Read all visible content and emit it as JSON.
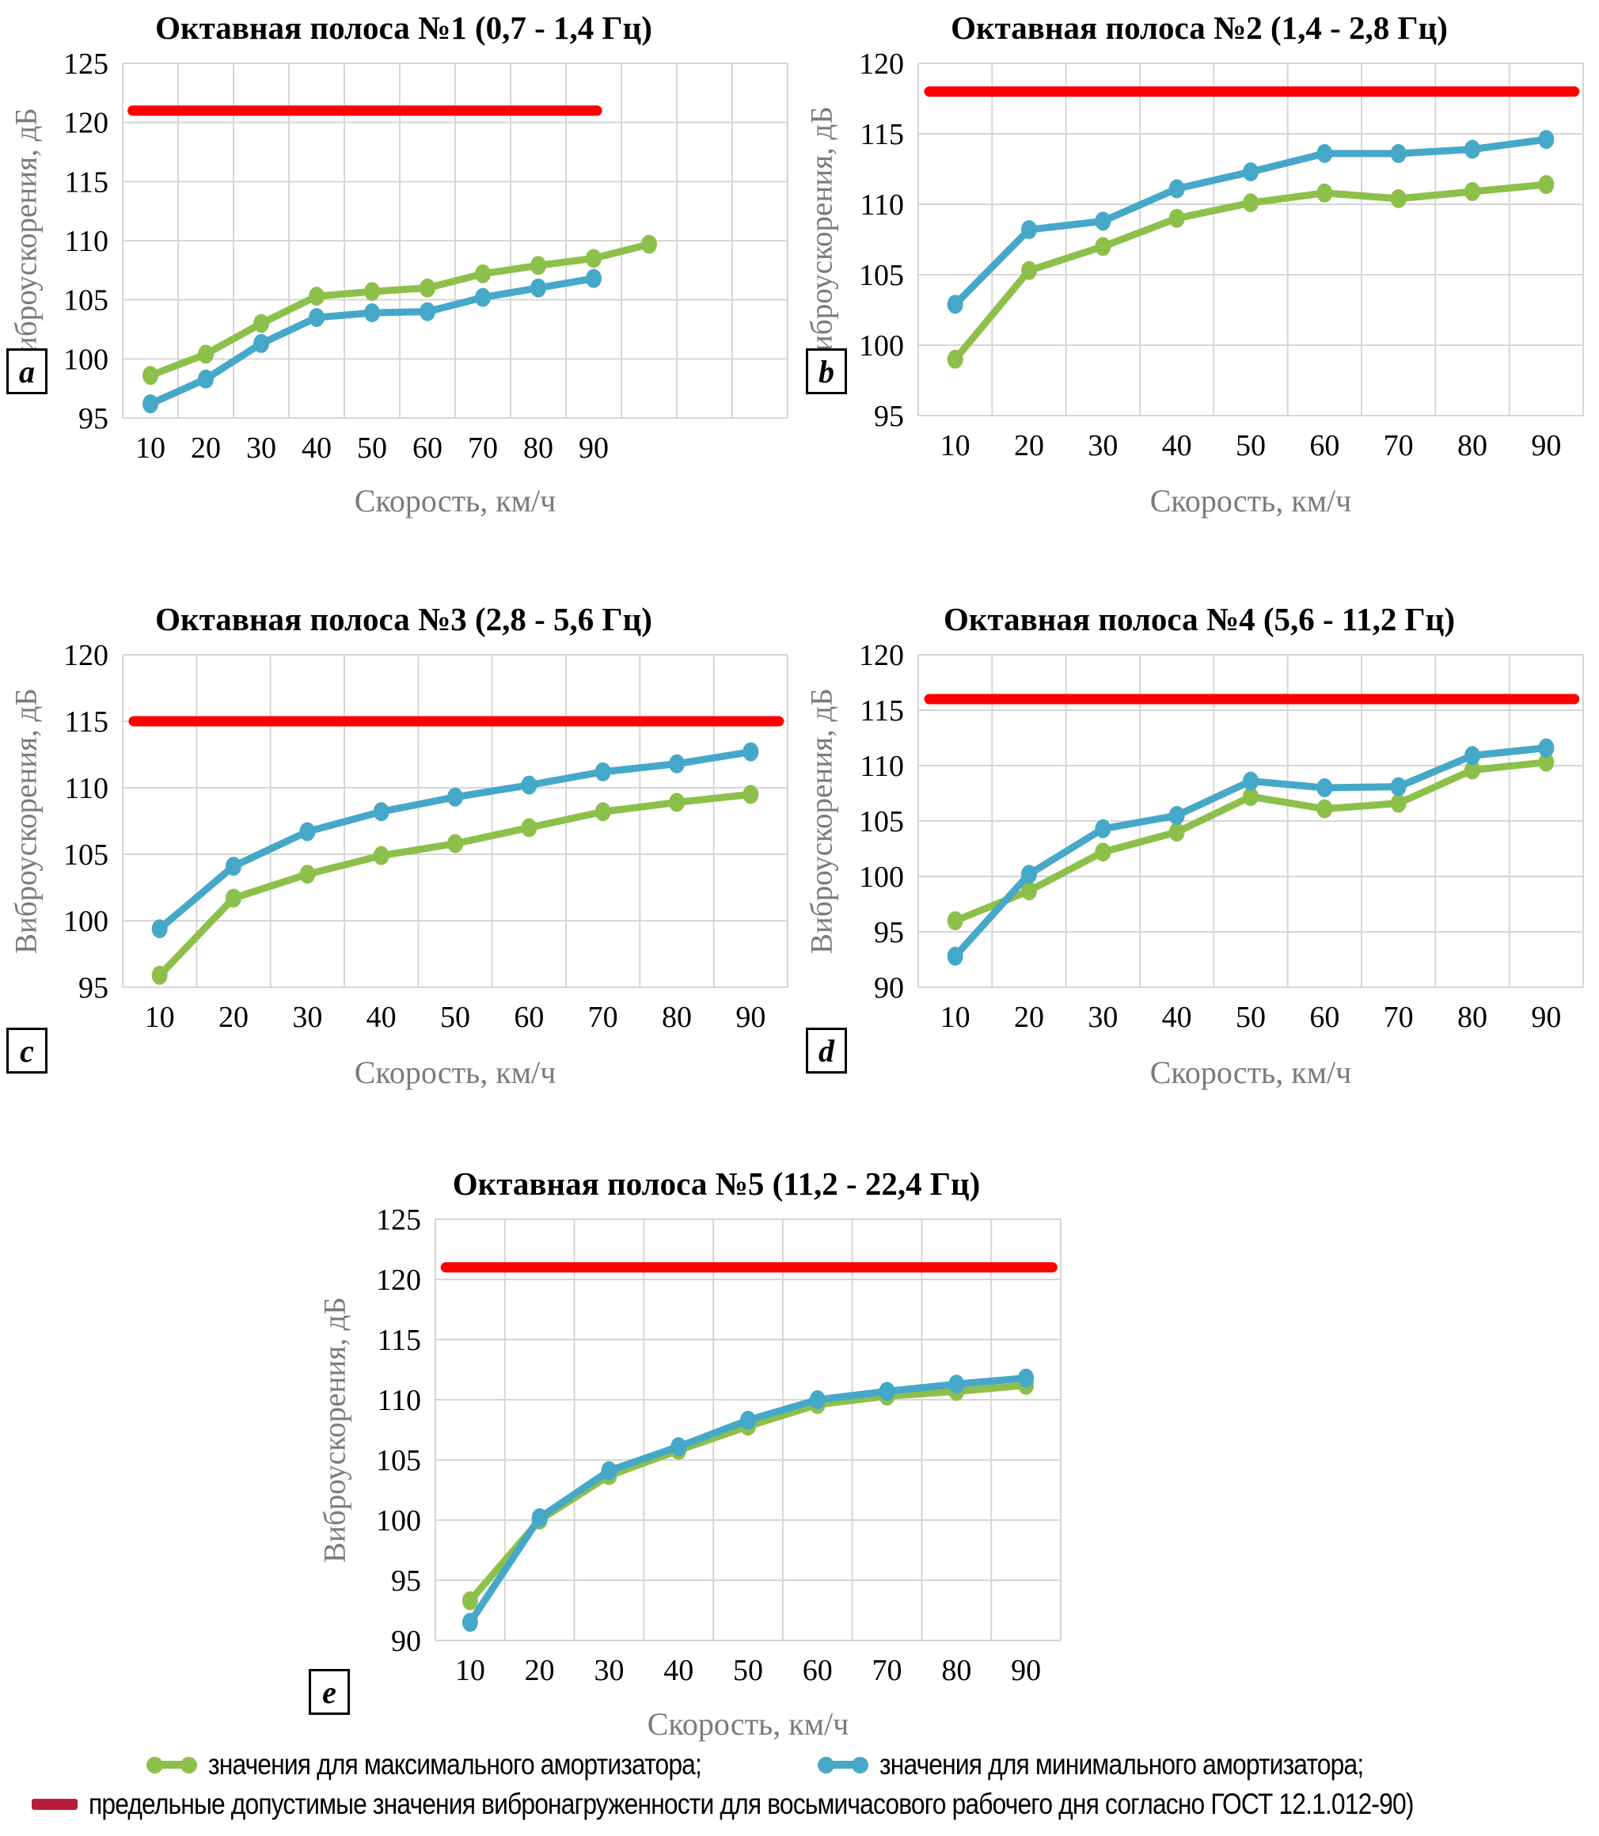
{
  "page": {
    "background": "#ffffff"
  },
  "legend": {
    "items": [
      {
        "swatch": "line-with-dots",
        "color": "#8dc04a",
        "label": "значения для максимального амортизатора;"
      },
      {
        "swatch": "line-with-dots",
        "color": "#46a8c8",
        "label": "значения для минимального амортизатора;"
      },
      {
        "swatch": "line",
        "color": "#b81e3c",
        "label": "предельные допустимые значения вибронагруженности для восьмичасового рабочего дня согласно ГОСТ 12.1.012-90)"
      }
    ]
  },
  "chart_data": {
    "type": "line",
    "xlabel": "Скорость, км/ч",
    "ylabel": "Виброускорения, дБ",
    "x_categories": [
      10,
      20,
      30,
      40,
      50,
      60,
      70,
      80,
      90
    ],
    "grid": "on",
    "series_colors": {
      "max": "#8dc04a",
      "min": "#46a8c8",
      "limit": "#ff0000"
    },
    "charts": [
      {
        "letter": "a",
        "title": "Октавная полоса №1 (0,7 - 1,4 Гц)",
        "ylim": [
          95,
          125
        ],
        "ystep": 5,
        "limit_value": 121,
        "series": [
          {
            "key": "max",
            "name": "значения для максимального амортизатора",
            "x": [
              10,
              20,
              30,
              40,
              50,
              60,
              70,
              80,
              90,
              100
            ],
            "values": [
              98.6,
              100.4,
              103.0,
              105.3,
              105.7,
              106.0,
              107.2,
              107.9,
              108.5,
              109.7
            ]
          },
          {
            "key": "min",
            "name": "значения для минимального амортизатора",
            "x": [
              10,
              20,
              30,
              40,
              50,
              60,
              70,
              80,
              90
            ],
            "values": [
              96.2,
              98.3,
              101.3,
              103.5,
              103.9,
              104.0,
              105.2,
              106.0,
              106.8
            ]
          }
        ]
      },
      {
        "letter": "b",
        "title": "Октавная полоса №2 (1,4 - 2,8 Гц)",
        "ylim": [
          95,
          120
        ],
        "ystep": 5,
        "limit_value": 118,
        "series": [
          {
            "key": "max",
            "name": "значения для максимального амортизатора",
            "x": [
              10,
              20,
              30,
              40,
              50,
              60,
              70,
              80,
              90
            ],
            "values": [
              99.0,
              105.3,
              107.0,
              109.0,
              110.1,
              110.8,
              110.4,
              110.9,
              111.4
            ]
          },
          {
            "key": "min",
            "name": "значения для минимального амортизатора",
            "x": [
              10,
              20,
              30,
              40,
              50,
              60,
              70,
              80,
              90
            ],
            "values": [
              102.9,
              108.2,
              108.8,
              111.1,
              112.3,
              113.6,
              113.6,
              113.9,
              114.6
            ]
          }
        ]
      },
      {
        "letter": "c",
        "title": "Октавная полоса №3 (2,8 - 5,6 Гц)",
        "ylim": [
          95,
          120
        ],
        "ystep": 5,
        "limit_value": 115,
        "series": [
          {
            "key": "max",
            "name": "значения для максимального амортизатора",
            "x": [
              10,
              20,
              30,
              40,
              50,
              60,
              70,
              80,
              90
            ],
            "values": [
              95.9,
              101.7,
              103.5,
              104.9,
              105.8,
              107.0,
              108.2,
              108.9,
              109.5
            ]
          },
          {
            "key": "min",
            "name": "значения для минимального амортизатора",
            "x": [
              10,
              20,
              30,
              40,
              50,
              60,
              70,
              80,
              90
            ],
            "values": [
              99.4,
              104.1,
              106.7,
              108.2,
              109.3,
              110.2,
              111.2,
              111.8,
              112.7
            ]
          }
        ]
      },
      {
        "letter": "d",
        "title": "Октавная полоса №4 (5,6 - 11,2 Гц)",
        "ylim": [
          90,
          120
        ],
        "ystep": 5,
        "limit_value": 116,
        "series": [
          {
            "key": "max",
            "name": "значения для максимального амортизатора",
            "x": [
              10,
              20,
              30,
              40,
              50,
              60,
              70,
              80,
              90
            ],
            "values": [
              96.0,
              98.7,
              102.2,
              104.0,
              107.2,
              106.1,
              106.6,
              109.6,
              110.3
            ]
          },
          {
            "key": "min",
            "name": "значения для минимального амортизатора",
            "x": [
              10,
              20,
              30,
              40,
              50,
              60,
              70,
              80,
              90
            ],
            "values": [
              92.8,
              100.2,
              104.3,
              105.5,
              108.6,
              108.0,
              108.1,
              110.9,
              111.6
            ]
          }
        ]
      },
      {
        "letter": "e",
        "title": "Октавная полоса №5 (11,2 - 22,4 Гц)",
        "ylim": [
          90,
          125
        ],
        "ystep": 5,
        "limit_value": 121,
        "series": [
          {
            "key": "max",
            "name": "значения для максимального амортизатора",
            "x": [
              10,
              20,
              30,
              40,
              50,
              60,
              70,
              80,
              90
            ],
            "values": [
              93.3,
              100.0,
              103.7,
              105.8,
              107.8,
              109.6,
              110.3,
              110.7,
              111.2
            ]
          },
          {
            "key": "min",
            "name": "значения для минимального амортизатора",
            "x": [
              10,
              20,
              30,
              40,
              50,
              60,
              70,
              80,
              90
            ],
            "values": [
              91.5,
              100.2,
              104.1,
              106.1,
              108.3,
              110.0,
              110.7,
              111.3,
              111.8
            ]
          }
        ]
      }
    ]
  }
}
